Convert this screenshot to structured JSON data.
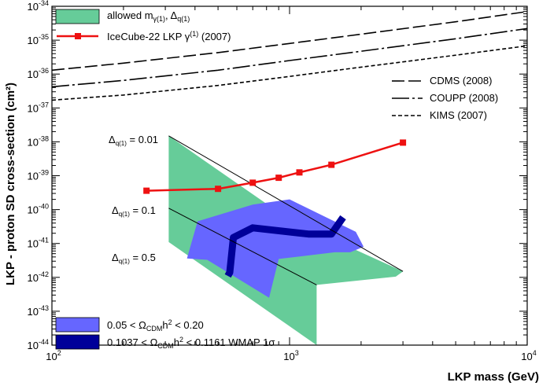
{
  "chart_data": {
    "type": "line",
    "xlabel": "LKP mass (GeV)",
    "ylabel": "LKP - proton SD cross-section (cm²)",
    "xscale": "log",
    "yscale": "log",
    "xlim": [
      100,
      10000
    ],
    "ylim": [
      1e-44,
      1e-34
    ],
    "x_ticks": [
      {
        "value": 100,
        "base": "10",
        "exp": "2"
      },
      {
        "value": 1000,
        "base": "10",
        "exp": "3"
      },
      {
        "value": 10000,
        "base": "10",
        "exp": "4"
      }
    ],
    "y_ticks": [
      {
        "value": 1e-34,
        "base": "10",
        "exp": "-34"
      },
      {
        "value": 1e-35,
        "base": "10",
        "exp": "-35"
      },
      {
        "value": 1e-36,
        "base": "10",
        "exp": "-36"
      },
      {
        "value": 1e-37,
        "base": "10",
        "exp": "-37"
      },
      {
        "value": 1e-38,
        "base": "10",
        "exp": "-38"
      },
      {
        "value": 1e-39,
        "base": "10",
        "exp": "-39"
      },
      {
        "value": 1e-40,
        "base": "10",
        "exp": "-40"
      },
      {
        "value": 1e-41,
        "base": "10",
        "exp": "-41"
      },
      {
        "value": 1e-42,
        "base": "10",
        "exp": "-42"
      },
      {
        "value": 1e-43,
        "base": "10",
        "exp": "-43"
      },
      {
        "value": 1e-44,
        "base": "10",
        "exp": "-44"
      }
    ],
    "regions": [
      {
        "id": "allowed",
        "color": "#66cc99",
        "polygon": [
          [
            310,
            1.5e-38
          ],
          [
            1000,
            5e-41
          ],
          [
            3000,
            1.5e-42
          ],
          [
            2800,
            1.05e-42
          ],
          [
            1300,
            6e-43
          ],
          [
            1300,
            1e-44
          ],
          [
            310,
            1.1e-41
          ]
        ]
      },
      {
        "id": "relic_2sigma",
        "color": "#6666ff",
        "polygon": [
          [
            410,
            4.5e-41
          ],
          [
            700,
            1.4e-40
          ],
          [
            1000,
            2e-40
          ],
          [
            1900,
            2.2e-41
          ],
          [
            2050,
            8e-42
          ],
          [
            1800,
            5.5e-42
          ],
          [
            1550,
            5.5e-42
          ],
          [
            900,
            3.5e-42
          ],
          [
            820,
            2.5e-43
          ],
          [
            450,
            3.3e-42
          ],
          [
            370,
            3.6e-42
          ]
        ]
      }
    ],
    "wmap_band": {
      "color": "#000099",
      "center_path": [
        [
          1680,
          5.9e-41
        ],
        [
          1500,
          1.9e-41
        ],
        [
          1200,
          1.9e-41
        ],
        [
          700,
          2.9e-41
        ],
        [
          580,
          1.5e-41
        ],
        [
          560,
          1.4e-42
        ],
        [
          550,
          1.1e-42
        ]
      ]
    },
    "boundary_lines": [
      {
        "label": "Δq(1) = 0.01",
        "points": [
          [
            310,
            1.5e-38
          ],
          [
            3000,
            1.5e-42
          ]
        ]
      },
      {
        "label": "Δq(1) = 0.1",
        "points": [
          [
            310,
            1.1e-40
          ],
          [
            1300,
            6e-43
          ]
        ]
      }
    ],
    "exclusion_curves": [
      {
        "name": "CDMS (2008)",
        "style": "long-dash",
        "x": [
          100,
          200,
          500,
          1000,
          2000,
          5000,
          10000
        ],
        "y": [
          1.3e-36,
          2.1e-36,
          4.3e-36,
          8e-36,
          1.5e-35,
          3.5e-35,
          7e-35
        ]
      },
      {
        "name": "COUPP (2008)",
        "style": "dash-dot",
        "x": [
          100,
          200,
          500,
          1000,
          2000,
          5000,
          10000
        ],
        "y": [
          4.2e-37,
          6.5e-37,
          1.3e-36,
          2.5e-36,
          4.7e-36,
          1.1e-35,
          2.2e-35
        ]
      },
      {
        "name": "KIMS (2007)",
        "style": "short-dash",
        "x": [
          100,
          200,
          500,
          1000,
          2000,
          5000,
          10000
        ],
        "y": [
          1.7e-37,
          2.4e-37,
          4.6e-37,
          8.5e-37,
          1.6e-36,
          3.6e-36,
          6.8e-36
        ]
      }
    ],
    "series": [
      {
        "name": "IceCube-22 LKP γ(1) (2007)",
        "color": "#ee1111",
        "x": [
          250,
          500,
          700,
          900,
          1100,
          1500,
          3000
        ],
        "y": [
          3.6e-40,
          4.1e-40,
          6.2e-40,
          8.7e-40,
          1.25e-39,
          2.1e-39,
          9.5e-39
        ]
      }
    ]
  },
  "legend_top": {
    "allowed": {
      "label_main": "allowed m",
      "label_sub1": "γ(1)",
      "label_mid": ", Δ",
      "label_sub2": "q(1)"
    },
    "icecube": {
      "label_main": "IceCube-22 LKP γ",
      "label_sup": "(1)",
      "label_tail": " (2007)"
    }
  },
  "legend_right": {
    "cdms": "CDMS (2008)",
    "coupp": "COUPP (2008)",
    "kims": "KIMS (2007)"
  },
  "legend_bottom": {
    "band2sigma": {
      "prefix": "0.05 < Ω",
      "sub": "CDM",
      "mid": "h",
      "sup": "2",
      "suffix": " < 0.20"
    },
    "band1sigma": {
      "prefix": "0.1037 < Ω",
      "sub": "CDM",
      "mid": "h",
      "sup": "2",
      "suffix": " < 0.1161 WMAP 1σ"
    }
  },
  "annotations": {
    "delta001": {
      "pre": "Δ",
      "sub": "q(1)",
      "post": " = 0.01"
    },
    "delta01": {
      "pre": "Δ",
      "sub": "q(1)",
      "post": " = 0.1"
    },
    "delta05": {
      "pre": "Δ",
      "sub": "q(1)",
      "post": " = 0.5"
    }
  }
}
